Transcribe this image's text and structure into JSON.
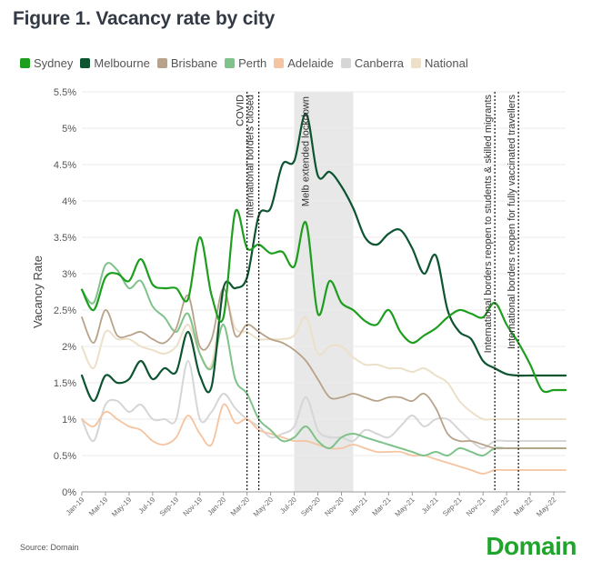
{
  "title": "Figure 1. Vacancy rate by city",
  "source": "Source: Domain",
  "logo": "Domain",
  "chart_data": {
    "type": "line",
    "ylabel": "Vacancy Rate",
    "ylim": [
      0,
      5.5
    ],
    "yticks": [
      "0%",
      "0.5%",
      "1%",
      "1.5%",
      "2%",
      "2.5%",
      "3%",
      "3.5%",
      "4%",
      "4.5%",
      "5%",
      "5.5%"
    ],
    "xticks": [
      "Jan-19",
      "Mar-19",
      "May-19",
      "Jul-19",
      "Sep-19",
      "Nov-19",
      "Jan-20",
      "Mar-20",
      "May-20",
      "Jul-20",
      "Sep-20",
      "Nov-20",
      "Jan-21",
      "Mar-21",
      "May-21",
      "Jul-21",
      "Sep-21",
      "Nov-21",
      "Jan-22",
      "Mar-22",
      "May-22"
    ],
    "n_months": 42,
    "shaded_region": {
      "start": 18,
      "end": 23,
      "label": "Melb extended lockdown"
    },
    "events": [
      {
        "month": 14,
        "label": "COVID"
      },
      {
        "month": 15,
        "label": "International borders closed"
      },
      {
        "month": 35,
        "label": "International borders reopen to students & skilled migrants"
      },
      {
        "month": 37,
        "label": "International borders reopen for fully vaccinated travellers"
      }
    ],
    "series": [
      {
        "name": "Sydney",
        "color": "#1e9e1e",
        "width": 2.2,
        "values": [
          2.78,
          2.5,
          2.95,
          3.0,
          2.9,
          3.2,
          2.85,
          2.8,
          2.8,
          2.65,
          3.5,
          2.7,
          2.4,
          3.85,
          3.35,
          3.4,
          3.28,
          3.3,
          3.1,
          3.7,
          2.45,
          2.9,
          2.6,
          2.5,
          2.35,
          2.3,
          2.5,
          2.2,
          2.05,
          2.15,
          2.25,
          2.4,
          2.5,
          2.45,
          2.4,
          2.6,
          2.3,
          2.05,
          1.75,
          1.4,
          1.4,
          1.4
        ]
      },
      {
        "name": "Melbourne",
        "color": "#0d5431",
        "width": 2.2,
        "values": [
          1.6,
          1.25,
          1.6,
          1.5,
          1.55,
          1.8,
          1.55,
          1.7,
          1.65,
          2.2,
          1.6,
          1.45,
          2.8,
          2.8,
          2.95,
          3.8,
          3.9,
          4.5,
          4.55,
          5.2,
          4.35,
          4.4,
          4.2,
          3.9,
          3.5,
          3.4,
          3.55,
          3.6,
          3.35,
          3.0,
          3.25,
          2.5,
          2.2,
          2.1,
          1.8,
          1.7,
          1.62,
          1.6,
          1.6,
          1.6,
          1.6,
          1.6
        ]
      },
      {
        "name": "Brisbane",
        "color": "#b8a38a",
        "width": 1.8,
        "values": [
          2.4,
          2.05,
          2.5,
          2.15,
          2.15,
          2.2,
          2.1,
          2.05,
          2.25,
          2.7,
          2.0,
          2.1,
          2.8,
          2.15,
          2.3,
          2.2,
          2.1,
          2.05,
          1.95,
          1.8,
          1.55,
          1.3,
          1.3,
          1.35,
          1.3,
          1.25,
          1.3,
          1.3,
          1.25,
          1.35,
          1.15,
          0.8,
          0.7,
          0.7,
          0.65,
          0.6,
          0.6,
          0.6,
          0.6,
          0.6,
          0.6,
          0.6
        ]
      },
      {
        "name": "Perth",
        "color": "#7fc28a",
        "width": 2.0,
        "values": [
          2.78,
          2.6,
          3.12,
          3.05,
          2.8,
          2.9,
          2.55,
          2.4,
          2.2,
          2.45,
          1.9,
          1.7,
          2.3,
          1.55,
          1.35,
          1.0,
          0.85,
          0.7,
          0.75,
          0.9,
          0.7,
          0.6,
          0.75,
          0.8,
          0.75,
          0.7,
          0.65,
          0.6,
          0.55,
          0.5,
          0.55,
          0.5,
          0.6,
          0.55,
          0.5,
          0.6,
          0.6,
          0.6,
          0.6,
          0.6,
          0.6,
          0.6
        ]
      },
      {
        "name": "Adelaide",
        "color": "#f5c4a0",
        "width": 1.8,
        "values": [
          1.0,
          0.9,
          1.1,
          1.0,
          0.9,
          0.85,
          0.7,
          0.65,
          0.75,
          1.05,
          0.8,
          0.65,
          1.2,
          0.95,
          1.0,
          0.85,
          0.8,
          0.75,
          0.7,
          0.7,
          0.65,
          0.6,
          0.6,
          0.65,
          0.6,
          0.55,
          0.55,
          0.55,
          0.5,
          0.5,
          0.45,
          0.4,
          0.35,
          0.3,
          0.25,
          0.3,
          0.3,
          0.3,
          0.3,
          0.3,
          0.3,
          0.3
        ]
      },
      {
        "name": "Canberra",
        "color": "#d6d6d6",
        "width": 2.0,
        "values": [
          1.0,
          0.7,
          1.2,
          1.25,
          1.1,
          1.2,
          1.0,
          1.0,
          1.0,
          1.8,
          1.0,
          1.1,
          1.35,
          1.15,
          1.0,
          0.9,
          0.75,
          0.8,
          0.9,
          1.3,
          0.85,
          0.75,
          0.75,
          0.7,
          0.85,
          0.8,
          0.75,
          0.9,
          1.05,
          0.9,
          1.0,
          1.0,
          0.85,
          0.7,
          0.6,
          0.7,
          0.7,
          0.7,
          0.7,
          0.7,
          0.7,
          0.7
        ]
      },
      {
        "name": "National",
        "color": "#ece0c9",
        "width": 2.0,
        "values": [
          2.0,
          1.7,
          2.2,
          2.1,
          2.1,
          2.0,
          1.95,
          1.9,
          2.0,
          2.3,
          1.9,
          1.75,
          2.7,
          2.25,
          2.2,
          2.1,
          2.1,
          2.1,
          2.15,
          2.4,
          1.9,
          2.0,
          2.0,
          1.85,
          1.75,
          1.75,
          1.7,
          1.7,
          1.65,
          1.7,
          1.6,
          1.5,
          1.25,
          1.1,
          1.0,
          1.0,
          1.0,
          1.0,
          1.0,
          1.0,
          1.0,
          1.0
        ]
      }
    ]
  }
}
